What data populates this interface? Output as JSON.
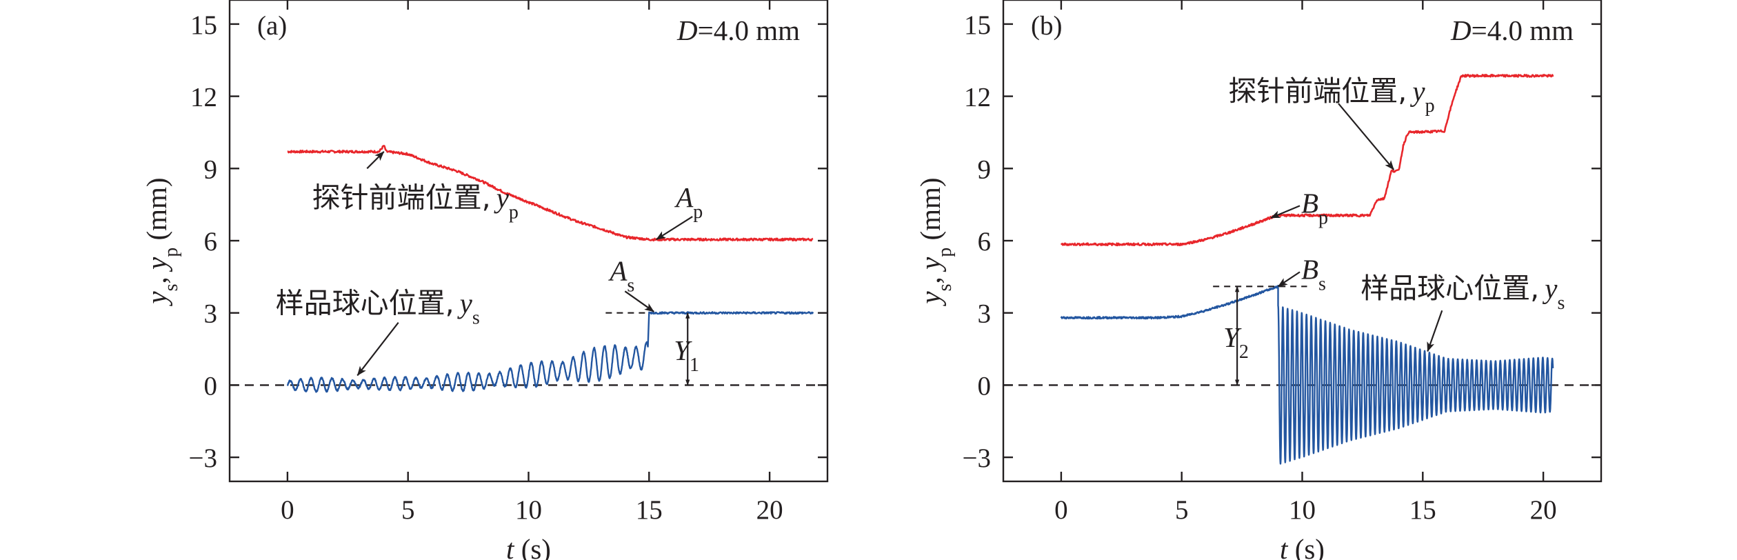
{
  "chart_data": [
    {
      "type": "line",
      "panel_label": "(a)",
      "condition": {
        "prefix": "D",
        "suffix": "=4.0 mm"
      },
      "xlabel": {
        "var": "t",
        "unit": " (s)"
      },
      "ylabel": {
        "parts": [
          "y",
          "s",
          ", ",
          "y",
          "p",
          " (mm)"
        ]
      },
      "xlim": [
        -2.4,
        22.4
      ],
      "ylim": [
        -4,
        16
      ],
      "xticks": [
        "0",
        "5",
        "10",
        "15",
        "20"
      ],
      "yticks": [
        "−3",
        "0",
        "3",
        "6",
        "9",
        "12",
        "15"
      ],
      "xtick_values": [
        0,
        5,
        10,
        15,
        20
      ],
      "ytick_values": [
        -3,
        0,
        3,
        6,
        9,
        12,
        15
      ],
      "baseline_y": 0,
      "series": [
        {
          "key": "yp",
          "color": "#e8262b",
          "t_end": 21.8,
          "keypoints": [
            [
              0,
              9.7
            ],
            [
              3.8,
              9.7
            ],
            [
              4.0,
              9.95
            ],
            [
              4.1,
              9.7
            ],
            [
              5.0,
              9.6
            ],
            [
              6.0,
              9.2
            ],
            [
              7.0,
              8.9
            ],
            [
              8.0,
              8.5
            ],
            [
              9.0,
              8.0
            ],
            [
              10.0,
              7.6
            ],
            [
              11.0,
              7.2
            ],
            [
              12.0,
              6.8
            ],
            [
              13.0,
              6.5
            ],
            [
              14.0,
              6.15
            ],
            [
              15.0,
              6.05
            ],
            [
              21.8,
              6.05
            ]
          ]
        },
        {
          "key": "ys",
          "color": "#2356a0",
          "t_end": 21.8,
          "oscillation_until": 14.95,
          "step_at": 15.0,
          "final_value": 3.0,
          "amplitude_keypoints": [
            [
              0,
              0.3
            ],
            [
              4,
              0.25
            ],
            [
              8,
              0.4
            ],
            [
              10,
              0.5
            ],
            [
              12,
              0.65
            ],
            [
              13.5,
              0.75
            ],
            [
              14.95,
              0.7
            ]
          ],
          "center_keypoints": [
            [
              0,
              0.0
            ],
            [
              4,
              0.05
            ],
            [
              8,
              0.15
            ],
            [
              10,
              0.4
            ],
            [
              12,
              0.7
            ],
            [
              13.5,
              1.0
            ],
            [
              14.95,
              1.2
            ]
          ]
        }
      ],
      "annotations": [
        {
          "type": "label",
          "text_cn": "探针前端位置,",
          "var": "y",
          "sub": "p",
          "arrow_from": [
            3.3,
            9.0
          ],
          "arrow_to": [
            4.0,
            9.7
          ]
        },
        {
          "type": "label",
          "text_cn": "样品球心位置,",
          "var": "y",
          "sub": "s",
          "arrow_from": [
            4.6,
            2.6
          ],
          "arrow_to": [
            2.9,
            0.4
          ]
        },
        {
          "type": "point",
          "var": "A",
          "sub": "p",
          "arrow_from": [
            16.8,
            7.0
          ],
          "arrow_to": [
            15.3,
            6.05
          ]
        },
        {
          "type": "point",
          "var": "A",
          "sub": "s",
          "arrow_from": [
            14.0,
            3.9
          ],
          "arrow_to": [
            15.2,
            3.05
          ]
        },
        {
          "type": "distance",
          "var": "Y",
          "sub": "1",
          "x": 16.6,
          "from": 0,
          "to": 3.0,
          "ref_line_x": [
            13.2,
            15.0
          ]
        }
      ]
    },
    {
      "type": "line",
      "panel_label": "(b)",
      "condition": {
        "prefix": "D",
        "suffix": "=4.0 mm"
      },
      "xlabel": {
        "var": "t",
        "unit": " (s)"
      },
      "ylabel": {
        "parts": [
          "y",
          "s",
          ", ",
          "y",
          "p",
          " (mm)"
        ]
      },
      "xlim": [
        -2.4,
        22.4
      ],
      "ylim": [
        -4,
        16
      ],
      "xticks": [
        "0",
        "5",
        "10",
        "15",
        "20"
      ],
      "yticks": [
        "−3",
        "0",
        "3",
        "6",
        "9",
        "12",
        "15"
      ],
      "xtick_values": [
        0,
        5,
        10,
        15,
        20
      ],
      "ytick_values": [
        -3,
        0,
        3,
        6,
        9,
        12,
        15
      ],
      "baseline_y": 0,
      "series": [
        {
          "key": "yp",
          "color": "#e8262b",
          "t_end": 20.4,
          "keypoints": [
            [
              0,
              5.85
            ],
            [
              5.0,
              5.85
            ],
            [
              6.0,
              6.05
            ],
            [
              7.0,
              6.35
            ],
            [
              8.0,
              6.7
            ],
            [
              8.8,
              7.0
            ],
            [
              9.0,
              7.05
            ],
            [
              12.8,
              7.05
            ],
            [
              13.1,
              7.7
            ],
            [
              13.4,
              7.75
            ],
            [
              13.7,
              8.9
            ],
            [
              14.0,
              8.9
            ],
            [
              14.2,
              10.0
            ],
            [
              14.4,
              10.5
            ],
            [
              15.9,
              10.55
            ],
            [
              16.1,
              11.3
            ],
            [
              16.3,
              12.0
            ],
            [
              16.6,
              12.85
            ],
            [
              20.4,
              12.85
            ]
          ]
        },
        {
          "key": "ys",
          "color": "#2356a0",
          "t_end": 20.4,
          "smooth_until": 9.0,
          "smooth_keypoints": [
            [
              0,
              2.8
            ],
            [
              4.0,
              2.8
            ],
            [
              5.0,
              2.85
            ],
            [
              6.0,
              3.1
            ],
            [
              7.0,
              3.4
            ],
            [
              8.0,
              3.75
            ],
            [
              9.0,
              4.1
            ]
          ],
          "oscillation_amplitude_keypoints": [
            [
              9.0,
              3.3
            ],
            [
              10.0,
              3.0
            ],
            [
              12.0,
              2.3
            ],
            [
              14.0,
              1.8
            ],
            [
              16.0,
              1.1
            ],
            [
              18.0,
              1.0
            ],
            [
              20.0,
              1.15
            ],
            [
              20.4,
              1.1
            ]
          ],
          "oscillation_center": 0.0
        }
      ],
      "annotations": [
        {
          "type": "label",
          "text_cn": "探针前端位置,",
          "var": "y",
          "sub": "p",
          "arrow_from": [
            11.5,
            11.7
          ],
          "arrow_to": [
            13.8,
            8.95
          ]
        },
        {
          "type": "label",
          "text_cn": "样品球心位置,",
          "var": "y",
          "sub": "s",
          "arrow_from": [
            15.8,
            3.1
          ],
          "arrow_to": [
            15.2,
            1.4
          ]
        },
        {
          "type": "point",
          "var": "B",
          "sub": "p",
          "arrow_from": [
            9.9,
            7.45
          ],
          "arrow_to": [
            8.7,
            6.95
          ]
        },
        {
          "type": "point",
          "var": "B",
          "sub": "s",
          "arrow_from": [
            9.9,
            4.7
          ],
          "arrow_to": [
            9.0,
            4.1
          ]
        },
        {
          "type": "distance",
          "var": "Y",
          "sub": "2",
          "x": 7.3,
          "from": 0,
          "to": 4.1,
          "ref_line_x": [
            6.3,
            10.2
          ]
        }
      ]
    }
  ]
}
